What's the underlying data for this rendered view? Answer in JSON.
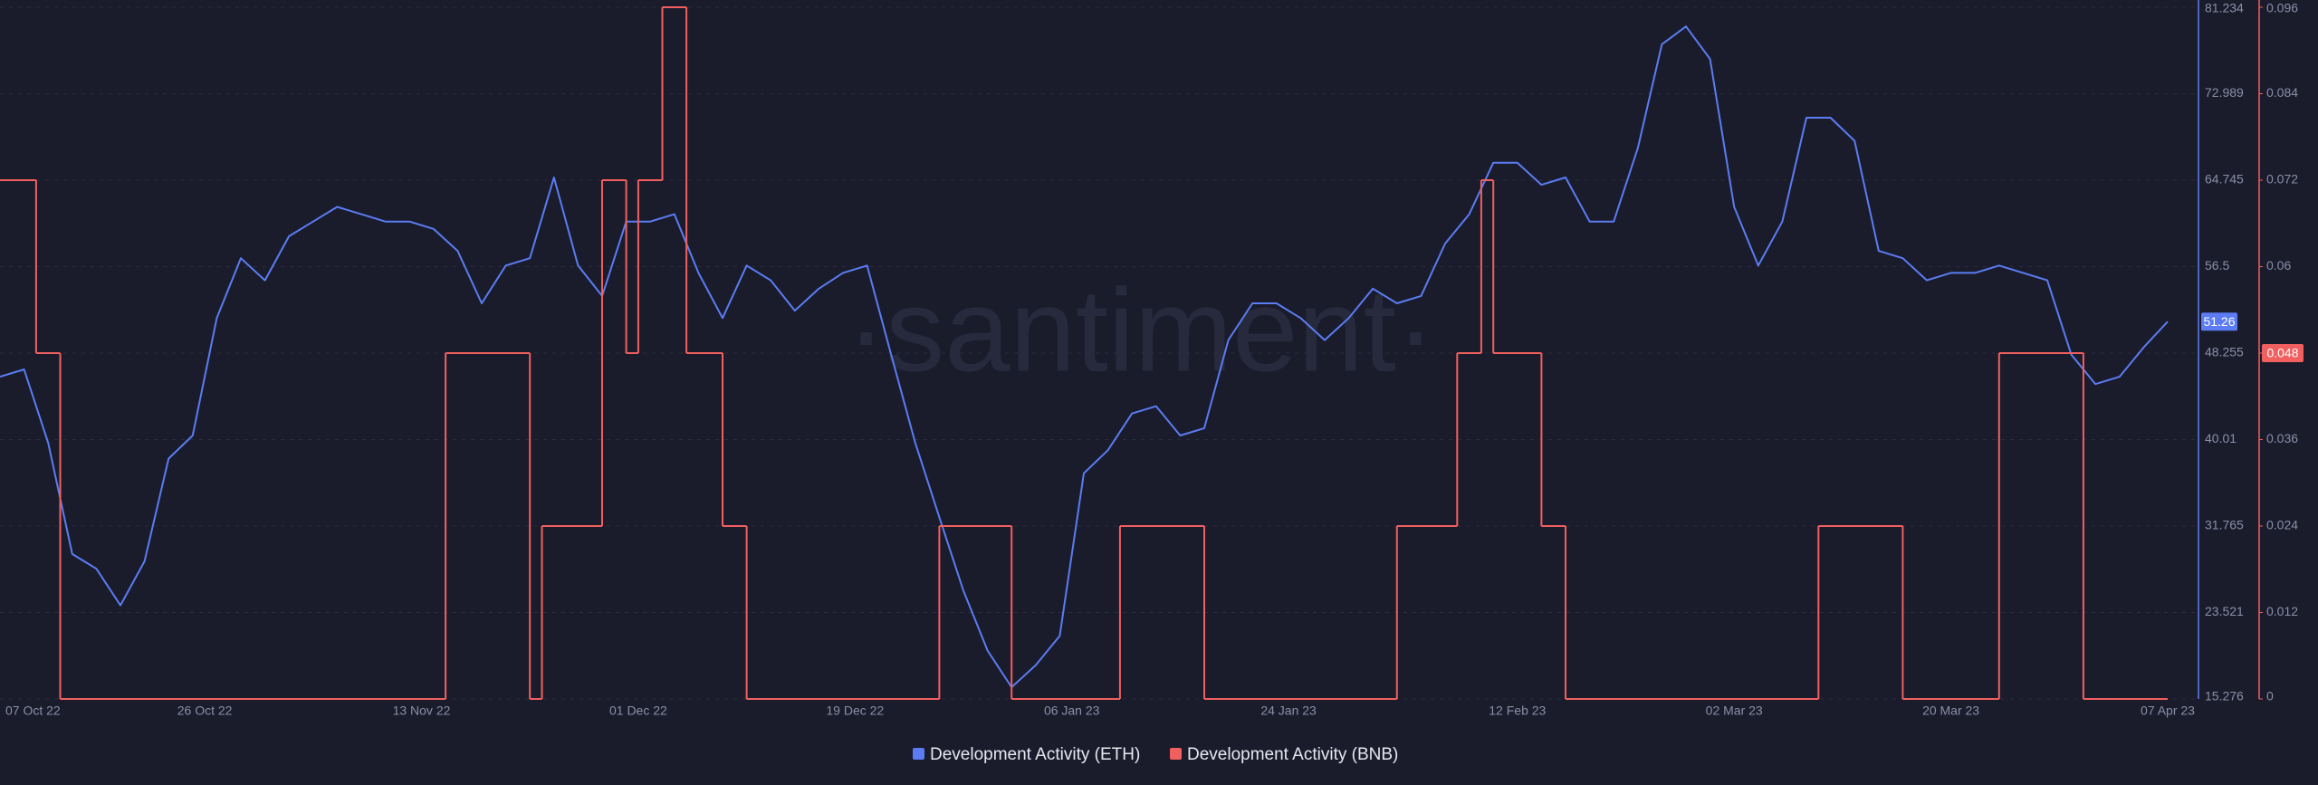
{
  "chart_data": {
    "type": "line",
    "watermark": "·santiment·",
    "xlim": [
      "2022-10-09",
      "2023-04-07"
    ],
    "xticks": [
      {
        "value": "2022-10-07",
        "label": "07 Oct 22"
      },
      {
        "value": "2022-10-26",
        "label": "26 Oct 22"
      },
      {
        "value": "2022-11-13",
        "label": "13 Nov 22"
      },
      {
        "value": "2022-12-01",
        "label": "01 Dec 22"
      },
      {
        "value": "2022-12-19",
        "label": "19 Dec 22"
      },
      {
        "value": "2023-01-06",
        "label": "06 Jan 23"
      },
      {
        "value": "2023-01-24",
        "label": "24 Jan 23"
      },
      {
        "value": "2023-02-12",
        "label": "12 Feb 23"
      },
      {
        "value": "2023-03-02",
        "label": "02 Mar 23"
      },
      {
        "value": "2023-03-20",
        "label": "20 Mar 23"
      },
      {
        "value": "2023-04-07",
        "label": "07 Apr 23"
      }
    ],
    "ylim": [
      15.276,
      81.234
    ],
    "yticks": [
      15.276,
      23.521,
      31.765,
      40.01,
      48.255,
      56.5,
      64.745,
      72.989,
      81.234
    ],
    "y2lim": [
      0,
      0.096
    ],
    "y2ticks": [
      0,
      0.012,
      0.024,
      0.036,
      0.048,
      0.06,
      0.072,
      0.084,
      0.096
    ],
    "grid": true,
    "legend": "bottom",
    "series": [
      {
        "name": "Development Activity (ETH)",
        "color": "#5b7cf2",
        "axis": "y",
        "x": [
          "2022-10-09",
          "2022-10-11",
          "2022-10-13",
          "2022-10-15",
          "2022-10-17",
          "2022-10-19",
          "2022-10-21",
          "2022-10-23",
          "2022-10-25",
          "2022-10-27",
          "2022-10-29",
          "2022-10-31",
          "2022-11-02",
          "2022-11-04",
          "2022-11-06",
          "2022-11-08",
          "2022-11-10",
          "2022-11-12",
          "2022-11-14",
          "2022-11-16",
          "2022-11-18",
          "2022-11-20",
          "2022-11-22",
          "2022-11-24",
          "2022-11-26",
          "2022-11-28",
          "2022-11-30",
          "2022-12-02",
          "2022-12-04",
          "2022-12-06",
          "2022-12-08",
          "2022-12-10",
          "2022-12-12",
          "2022-12-14",
          "2022-12-16",
          "2022-12-18",
          "2022-12-20",
          "2022-12-22",
          "2022-12-24",
          "2022-12-26",
          "2022-12-28",
          "2022-12-30",
          "2023-01-01",
          "2023-01-03",
          "2023-01-05",
          "2023-01-07",
          "2023-01-09",
          "2023-01-11",
          "2023-01-13",
          "2023-01-15",
          "2023-01-17",
          "2023-01-19",
          "2023-01-21",
          "2023-01-23",
          "2023-01-25",
          "2023-01-27",
          "2023-01-29",
          "2023-01-31",
          "2023-02-02",
          "2023-02-04",
          "2023-02-06",
          "2023-02-08",
          "2023-02-10",
          "2023-02-12",
          "2023-02-14",
          "2023-02-16",
          "2023-02-18",
          "2023-02-20",
          "2023-02-22",
          "2023-02-24",
          "2023-02-26",
          "2023-02-28",
          "2023-03-02",
          "2023-03-04",
          "2023-03-06",
          "2023-03-08",
          "2023-03-10",
          "2023-03-12",
          "2023-03-14",
          "2023-03-16",
          "2023-03-18",
          "2023-03-20",
          "2023-03-22",
          "2023-03-24",
          "2023-03-26",
          "2023-03-28",
          "2023-03-30",
          "2023-04-01",
          "2023-04-03",
          "2023-04-05",
          "2023-04-07"
        ],
        "values": [
          46.0,
          46.7,
          39.7,
          29.1,
          27.7,
          24.2,
          28.4,
          38.2,
          40.4,
          51.6,
          57.3,
          55.2,
          59.4,
          60.8,
          62.2,
          61.5,
          60.8,
          60.8,
          60.1,
          58.0,
          53.0,
          56.6,
          57.3,
          65.0,
          56.6,
          53.7,
          60.8,
          60.8,
          61.5,
          55.9,
          51.6,
          56.6,
          55.2,
          52.3,
          54.4,
          55.9,
          56.6,
          48.1,
          39.7,
          32.6,
          25.6,
          19.9,
          16.4,
          18.5,
          21.3,
          36.8,
          39.0,
          42.5,
          43.2,
          40.4,
          41.1,
          49.5,
          53.0,
          53.0,
          51.6,
          49.5,
          51.6,
          54.4,
          53.0,
          53.7,
          58.7,
          61.5,
          66.4,
          66.4,
          64.3,
          65.0,
          60.8,
          60.8,
          67.8,
          77.7,
          79.4,
          76.3,
          62.2,
          56.6,
          60.8,
          70.7,
          70.7,
          68.5,
          58.0,
          57.3,
          55.2,
          55.9,
          55.9,
          56.6,
          55.9,
          55.2,
          48.1,
          45.3,
          46.0,
          48.8,
          51.26
        ]
      },
      {
        "name": "Development Activity (BNB)",
        "color": "#f25f5f",
        "axis": "y2",
        "step": true,
        "x": [
          "2022-10-09",
          "2022-10-12",
          "2022-10-14",
          "2022-11-15",
          "2022-11-22",
          "2022-11-23",
          "2022-11-28",
          "2022-11-30",
          "2022-12-01",
          "2022-12-03",
          "2022-12-05",
          "2022-12-08",
          "2022-12-10",
          "2022-12-26",
          "2023-01-01",
          "2023-01-10",
          "2023-01-17",
          "2023-02-02",
          "2023-02-07",
          "2023-02-09",
          "2023-02-10",
          "2023-02-14",
          "2023-02-16",
          "2023-03-09",
          "2023-03-16",
          "2023-03-24",
          "2023-03-31",
          "2023-04-07"
        ],
        "values": [
          0.072,
          0.048,
          0,
          0.048,
          0,
          0.024,
          0.072,
          0.048,
          0.072,
          0.096,
          0.048,
          0.024,
          0,
          0.024,
          0,
          0.024,
          0,
          0.024,
          0.048,
          0.072,
          0.048,
          0.024,
          0,
          0.024,
          0,
          0.048,
          0,
          0
        ]
      }
    ]
  }
}
